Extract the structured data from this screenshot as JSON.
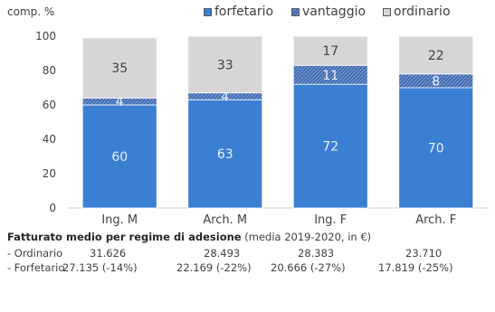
{
  "chart_data": {
    "type": "bar",
    "stacked": true,
    "ylabel": "comp. %",
    "ylim": [
      0,
      100
    ],
    "yticks": [
      0,
      20,
      40,
      60,
      80,
      100
    ],
    "categories": [
      "Ing. M",
      "Arch. M",
      "Ing. F",
      "Arch. F"
    ],
    "series": [
      {
        "name": "forfetario",
        "values": [
          60,
          63,
          72,
          70
        ],
        "color": "#3b7fd2",
        "label_color": "#eaf1fb",
        "pattern": "solid"
      },
      {
        "name": "vantaggio",
        "values": [
          4,
          4,
          11,
          8
        ],
        "color": "#3f67ad",
        "label_color": "#eaf1fb",
        "pattern": "hatched"
      },
      {
        "name": "ordinario",
        "values": [
          35,
          33,
          17,
          22
        ],
        "color": "#d6d6d6",
        "label_color": "#404040",
        "pattern": "solid"
      }
    ],
    "grid": false,
    "legend": "top"
  },
  "table": {
    "title_bold": "Fatturato medio per regime di adesione",
    "title_rest": " (media 2019-2020, in €)",
    "rows": [
      {
        "label": "- Ordinario",
        "values": [
          "31.626",
          "28.493",
          "28.383",
          "23.710"
        ]
      },
      {
        "label": "- Forfetario",
        "values": [
          "27.135 (-14%)",
          "22.169 (-22%)",
          "20.666 (-27%)",
          "17.819 (-25%)"
        ]
      }
    ]
  }
}
